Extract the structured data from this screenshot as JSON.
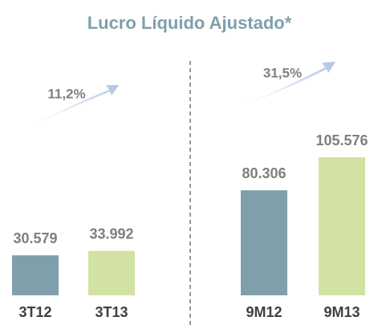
{
  "title": "Lucro Líquido Ajustado*",
  "chart_data": [
    {
      "type": "bar",
      "categories": [
        "3T12",
        "3T13"
      ],
      "values": [
        30579,
        33992
      ],
      "value_labels": [
        "30.579",
        "33.992"
      ],
      "colors": [
        "#7f9fab",
        "#d2e2a4"
      ],
      "annotation": "11,2%"
    },
    {
      "type": "bar",
      "categories": [
        "9M12",
        "9M13"
      ],
      "values": [
        80306,
        105576
      ],
      "value_labels": [
        "80.306",
        "105.576"
      ],
      "colors": [
        "#7f9fab",
        "#d2e2a4"
      ],
      "annotation": "31,5%"
    }
  ]
}
